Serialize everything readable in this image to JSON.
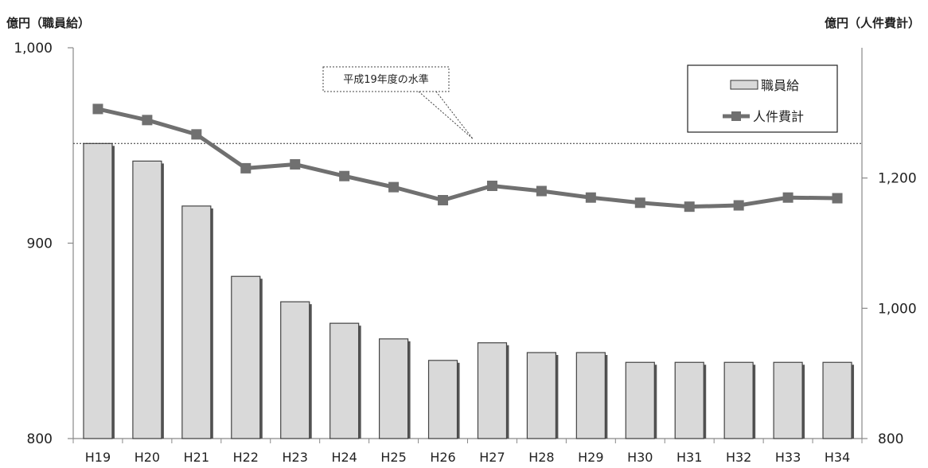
{
  "chart_data": {
    "type": "bar",
    "categories": [
      "H19",
      "H20",
      "H21",
      "H22",
      "H23",
      "H24",
      "H25",
      "H26",
      "H27",
      "H28",
      "H29",
      "H30",
      "H31",
      "H32",
      "H33",
      "H34"
    ],
    "series": [
      {
        "name": "職員給",
        "type": "bar",
        "axis": "left",
        "values": [
          951,
          942,
          919,
          883,
          870,
          859,
          851,
          840,
          849,
          844,
          844,
          839,
          839,
          839,
          839,
          839
        ],
        "color": "#d9d9d9"
      },
      {
        "name": "人件費計",
        "type": "line",
        "axis": "right",
        "values": [
          1306,
          1289,
          1267,
          1215,
          1221,
          1203,
          1186,
          1166,
          1188,
          1180,
          1170,
          1162,
          1156,
          1158,
          1170,
          1169
        ],
        "color": "#707070"
      }
    ],
    "ylabel_left": "億円（職員給）",
    "ylabel_right": "億円（人件費計）",
    "ylim_left": [
      800,
      1000
    ],
    "yticks_left": [
      "800",
      "900",
      "1,000"
    ],
    "ylim_right": [
      800,
      1400
    ],
    "yticks_right": [
      "800",
      "1,000",
      "1,200"
    ],
    "reference_line": {
      "value": 951,
      "axis": "left",
      "label": "平成19年度の水準"
    },
    "legend": {
      "position": "top-right",
      "items": [
        "職員給",
        "人件費計"
      ]
    },
    "grid": false
  }
}
